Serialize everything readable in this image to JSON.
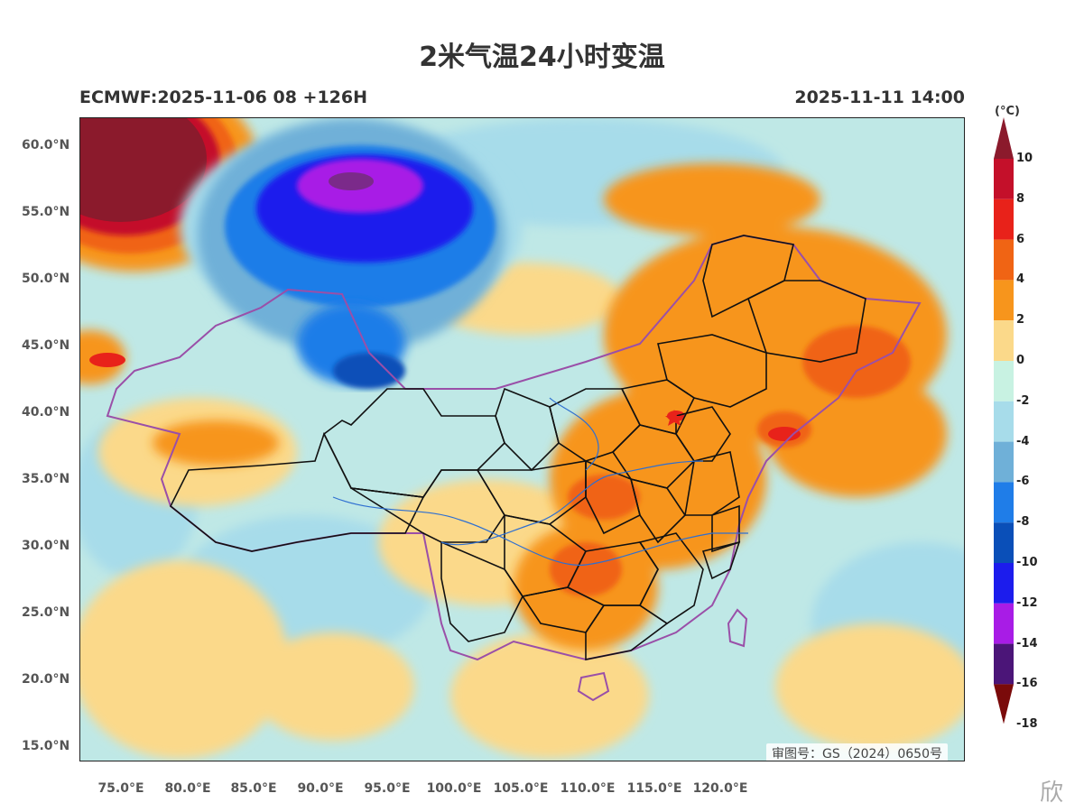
{
  "header": {
    "title": "2米气温24小时变温",
    "model_run": "ECMWF:2025-11-06 08 +126H",
    "valid_time": "2025-11-11 14:00"
  },
  "axes": {
    "lat_labels": [
      "60.0°N",
      "55.0°N",
      "50.0°N",
      "45.0°N",
      "40.0°N",
      "35.0°N",
      "30.0°N",
      "25.0°N",
      "20.0°N",
      "15.0°N"
    ],
    "lon_labels": [
      "75.0°E",
      "80.0°E",
      "85.0°E",
      "90.0°E",
      "95.0°E",
      "100.0°E",
      "105.0°E",
      "110.0°E",
      "115.0°E",
      "120.0°E"
    ]
  },
  "colorbar": {
    "unit": "(°C)",
    "labels": [
      "10",
      "8",
      "6",
      "4",
      "2",
      "0",
      "-2",
      "-4",
      "-6",
      "-8",
      "-10",
      "-12",
      "-14",
      "-16",
      "-18"
    ],
    "colors": [
      "#8b1a2c",
      "#c4102a",
      "#e8221a",
      "#f06414",
      "#f7951c",
      "#fbd98a",
      "#c8f2e2",
      "#a7dcea",
      "#6fb0d8",
      "#1f7de8",
      "#0a4fb8",
      "#1c1ced",
      "#a81ce6",
      "#4b1578",
      "#7a0a0a"
    ]
  },
  "map": {
    "watermark": "审图号：GS（2024）0650号"
  },
  "corner_stamp": "欣"
}
